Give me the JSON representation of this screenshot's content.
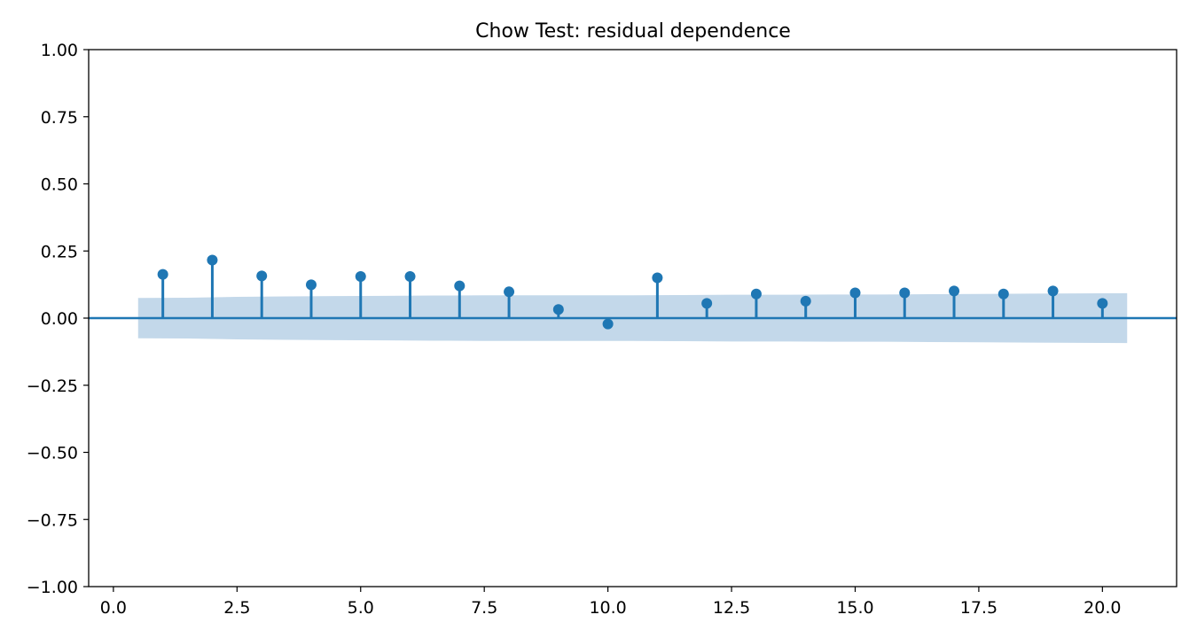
{
  "chart_data": {
    "type": "stem",
    "title": "Chow Test: residual dependence",
    "xlabel": "",
    "ylabel": "",
    "xlim": [
      -0.5,
      21.5
    ],
    "ylim": [
      -1.0,
      1.0
    ],
    "x_ticks": [
      0.0,
      2.5,
      5.0,
      7.5,
      10.0,
      12.5,
      15.0,
      17.5,
      20.0
    ],
    "x_tick_labels": [
      "0.0",
      "2.5",
      "5.0",
      "7.5",
      "10.0",
      "12.5",
      "15.0",
      "17.5",
      "20.0"
    ],
    "y_ticks": [
      1.0,
      0.75,
      0.5,
      0.25,
      0.0,
      -0.25,
      -0.5,
      -0.75,
      -1.0
    ],
    "y_tick_labels": [
      "1.00",
      "0.75",
      "0.50",
      "0.25",
      "0.00",
      "−0.25",
      "−0.50",
      "−0.75",
      "−1.00"
    ],
    "points": [
      {
        "x": 1,
        "y": 0.163
      },
      {
        "x": 2,
        "y": 0.216
      },
      {
        "x": 3,
        "y": 0.157
      },
      {
        "x": 4,
        "y": 0.124
      },
      {
        "x": 5,
        "y": 0.155
      },
      {
        "x": 6,
        "y": 0.155
      },
      {
        "x": 7,
        "y": 0.12
      },
      {
        "x": 8,
        "y": 0.098
      },
      {
        "x": 9,
        "y": 0.032
      },
      {
        "x": 10,
        "y": -0.022
      },
      {
        "x": 11,
        "y": 0.15
      },
      {
        "x": 12,
        "y": 0.055
      },
      {
        "x": 13,
        "y": 0.09
      },
      {
        "x": 14,
        "y": 0.063
      },
      {
        "x": 15,
        "y": 0.094
      },
      {
        "x": 16,
        "y": 0.094
      },
      {
        "x": 17,
        "y": 0.101
      },
      {
        "x": 18,
        "y": 0.09
      },
      {
        "x": 19,
        "y": 0.101
      },
      {
        "x": 20,
        "y": 0.055
      }
    ],
    "confidence_band": [
      {
        "x": 0.5,
        "upper": 0.075
      },
      {
        "x": 1.5,
        "upper": 0.076
      },
      {
        "x": 2.5,
        "upper": 0.079
      },
      {
        "x": 3.5,
        "upper": 0.081
      },
      {
        "x": 4.5,
        "upper": 0.082
      },
      {
        "x": 5.5,
        "upper": 0.083
      },
      {
        "x": 6.5,
        "upper": 0.084
      },
      {
        "x": 7.5,
        "upper": 0.085
      },
      {
        "x": 8.5,
        "upper": 0.085
      },
      {
        "x": 9.5,
        "upper": 0.085
      },
      {
        "x": 10.5,
        "upper": 0.085
      },
      {
        "x": 11.5,
        "upper": 0.086
      },
      {
        "x": 12.5,
        "upper": 0.087
      },
      {
        "x": 13.5,
        "upper": 0.087
      },
      {
        "x": 14.5,
        "upper": 0.088
      },
      {
        "x": 15.5,
        "upper": 0.088
      },
      {
        "x": 16.5,
        "upper": 0.089
      },
      {
        "x": 17.5,
        "upper": 0.09
      },
      {
        "x": 18.5,
        "upper": 0.091
      },
      {
        "x": 19.5,
        "upper": 0.092
      },
      {
        "x": 20.5,
        "upper": 0.093
      }
    ],
    "zero_line": 0.0,
    "grid": false,
    "legend": "none",
    "colors": {
      "stem": "#1f77b4",
      "marker": "#1f77b4",
      "band": "#c3d8ea",
      "axes": "#000000",
      "background": "#ffffff"
    }
  }
}
